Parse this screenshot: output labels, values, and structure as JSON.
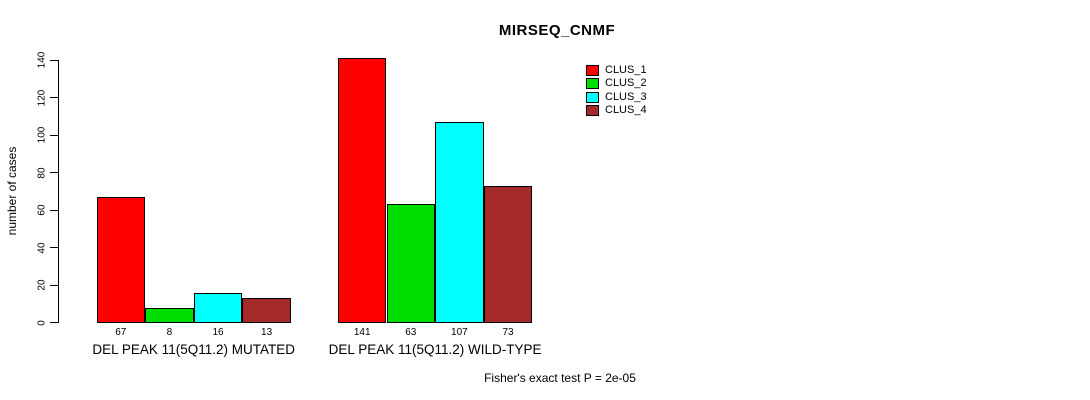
{
  "title": "MIRSEQ_CNMF",
  "ylabel": "number of cases",
  "footer": "Fisher's exact test P = 2e-05",
  "legend": {
    "position": "top-right",
    "items": [
      {
        "label": "CLUS_1",
        "color": "#FF0000"
      },
      {
        "label": "CLUS_2",
        "color": "#00DD00"
      },
      {
        "label": "CLUS_3",
        "color": "#00FFFF"
      },
      {
        "label": "CLUS_4",
        "color": "#A52A2A"
      }
    ]
  },
  "chart_data": {
    "type": "bar",
    "title": "MIRSEQ_CNMF",
    "xlabel": "",
    "ylabel": "number of cases",
    "ylim": [
      0,
      140
    ],
    "yticks": [
      0,
      20,
      40,
      60,
      80,
      100,
      120,
      140
    ],
    "grid": false,
    "legend_position": "top-right",
    "series": [
      "CLUS_1",
      "CLUS_2",
      "CLUS_3",
      "CLUS_4"
    ],
    "colors": [
      "#FF0000",
      "#00DD00",
      "#00FFFF",
      "#A52A2A"
    ],
    "groups": [
      {
        "label": "DEL PEAK 11(5Q11.2) MUTATED",
        "values": [
          67,
          8,
          16,
          13
        ]
      },
      {
        "label": "DEL PEAK 11(5Q11.2) WILD-TYPE",
        "values": [
          141,
          63,
          107,
          73
        ]
      }
    ],
    "bar_value_labels": true,
    "annotation": "Fisher's exact test P = 2e-05"
  }
}
